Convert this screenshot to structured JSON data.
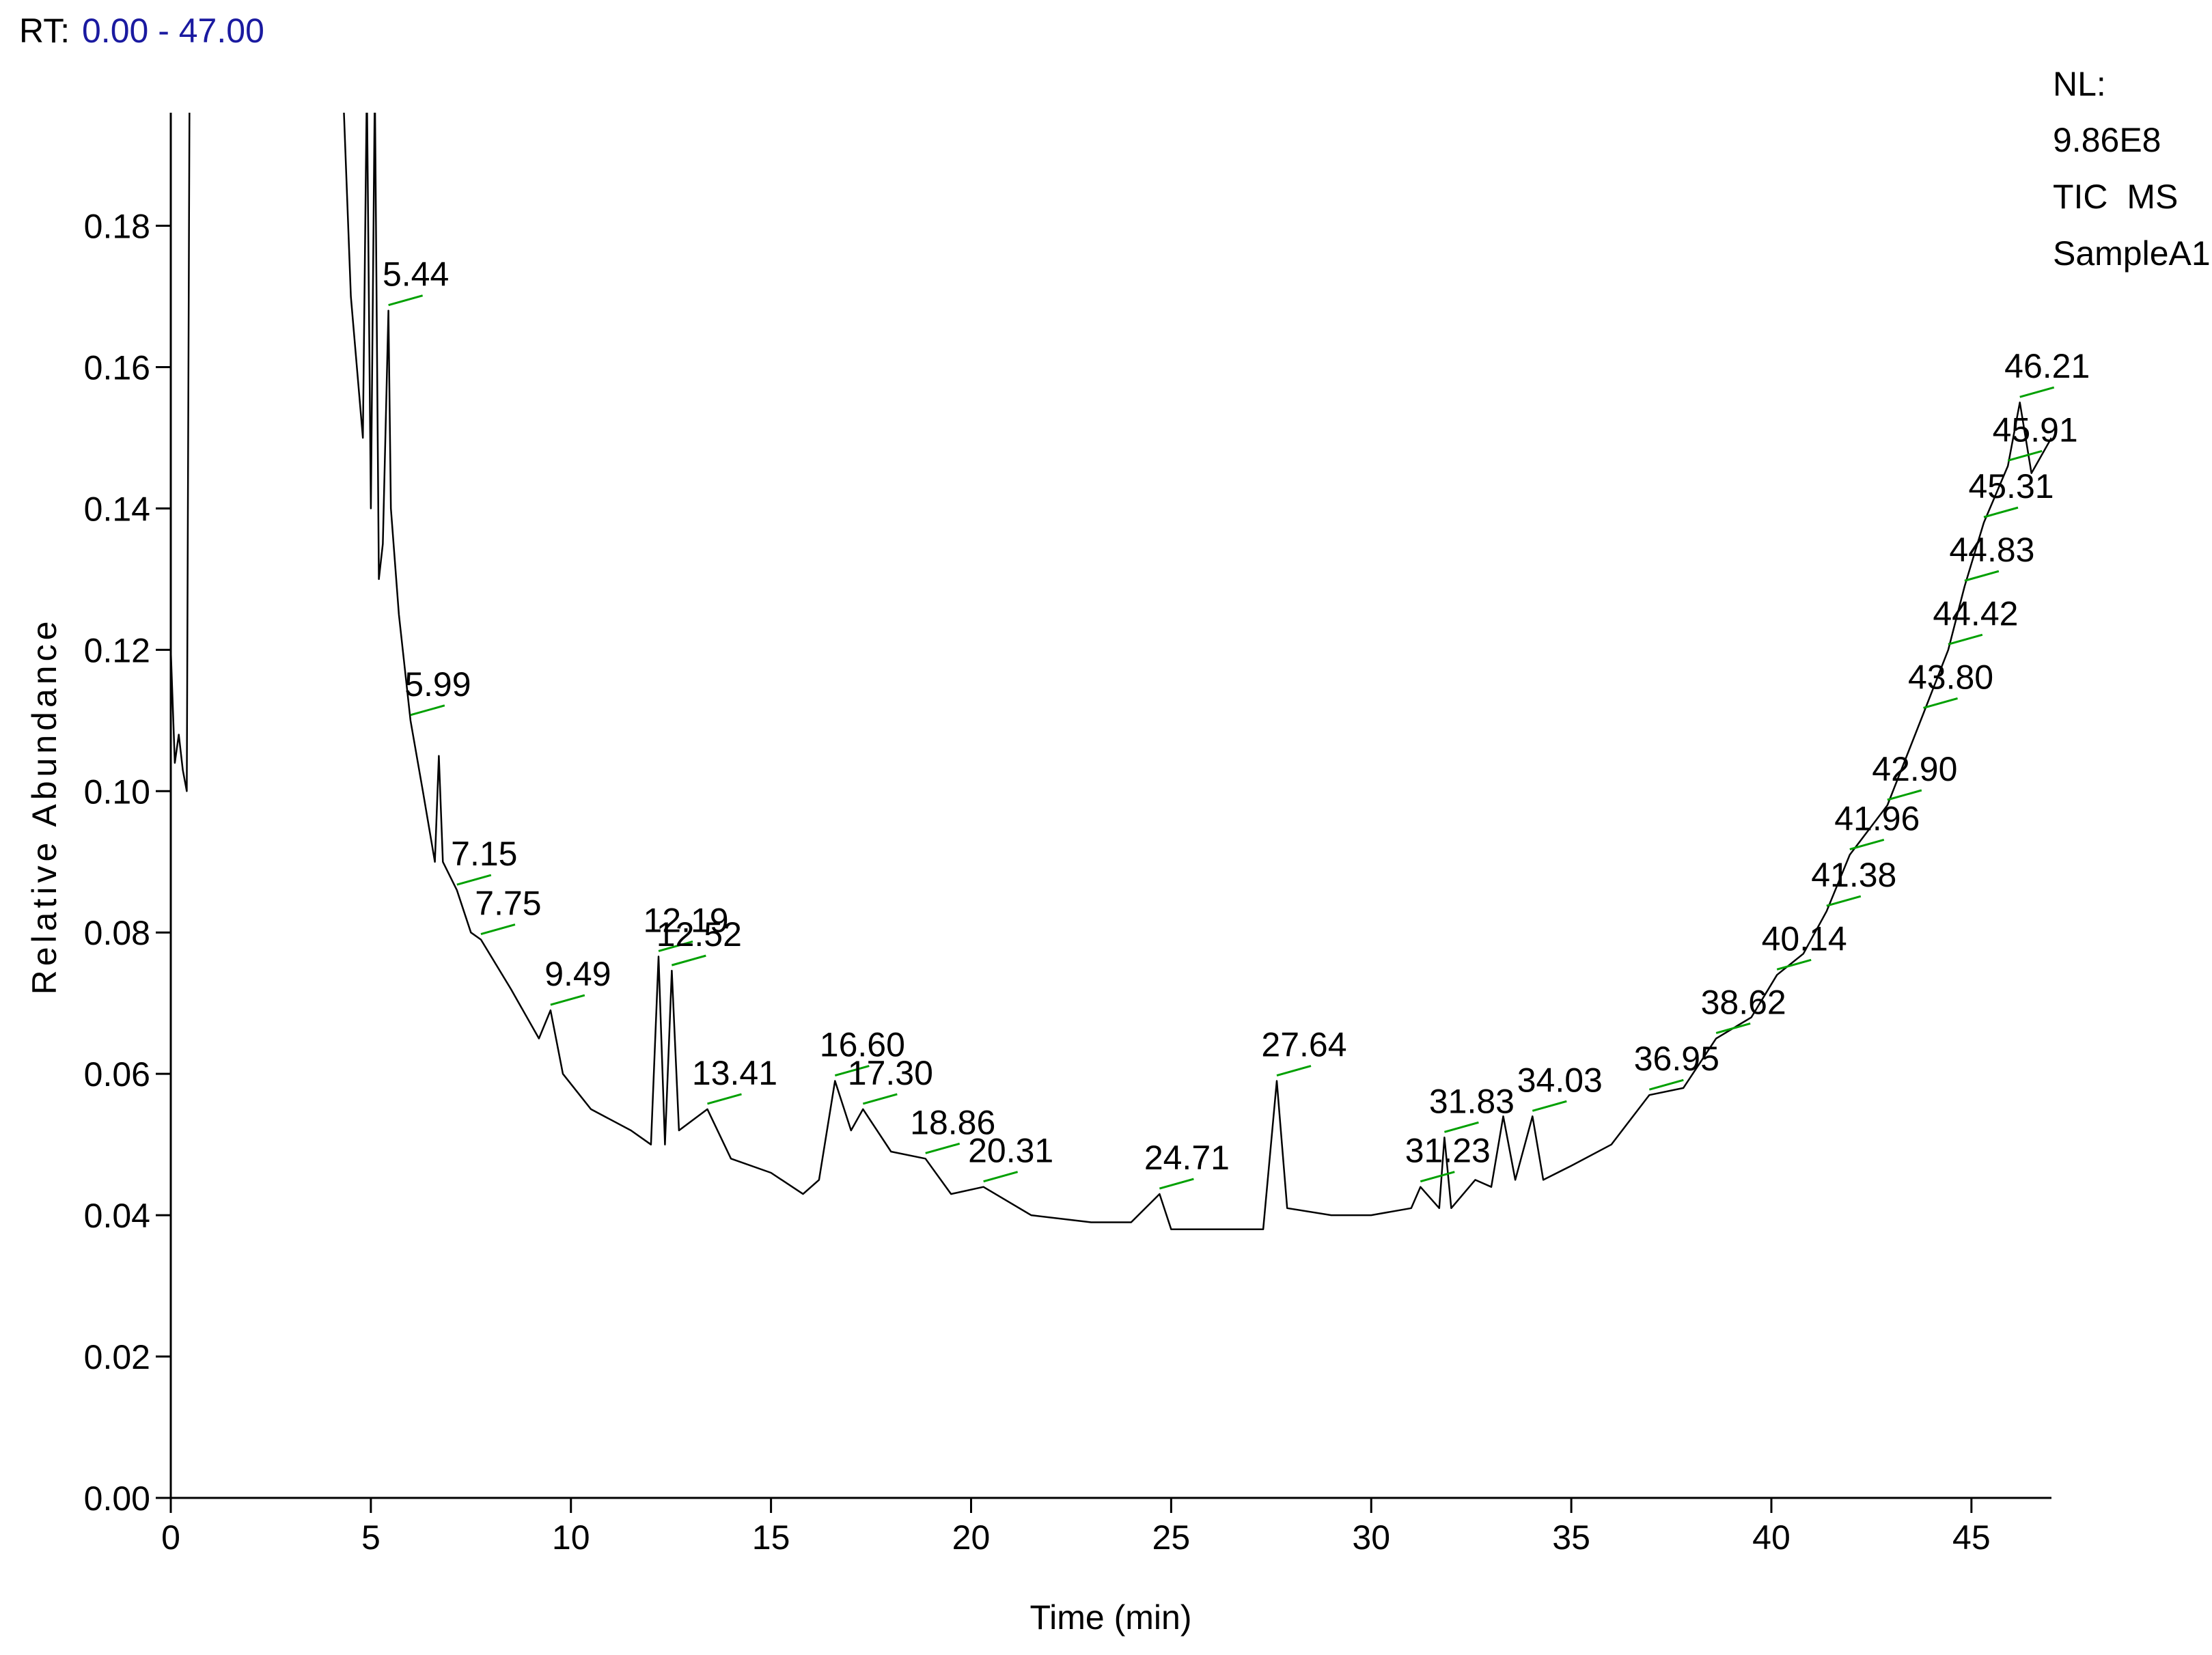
{
  "chart_data": {
    "type": "line",
    "rt_label": "RT:",
    "rt_range": "0.00 - 47.00",
    "info": [
      "NL:",
      "9.86E8",
      "TIC  MS",
      "SampleA1"
    ],
    "x_label": "Time (min)",
    "y_label": "Relative Abundance",
    "xlim": [
      0,
      47
    ],
    "ylim": [
      0,
      0.196
    ],
    "xticks": [
      0,
      5,
      10,
      15,
      20,
      25,
      30,
      35,
      40,
      45
    ],
    "yticks": [
      {
        "value": 0,
        "label": "0.00"
      },
      0.02,
      0.04,
      0.06,
      0.08,
      {
        "value": 0.1,
        "label": "0.10"
      },
      0.12,
      0.14,
      0.16,
      0.18
    ],
    "x": [
      0,
      0.1,
      0.2,
      0.3,
      0.4,
      0.47,
      2.5,
      4.3,
      4.5,
      4.8,
      4.9,
      5.0,
      5.1,
      5.2,
      5.3,
      5.44,
      5.5,
      5.7,
      5.99,
      6.3,
      6.6,
      6.7,
      6.8,
      7.15,
      7.5,
      7.75,
      8.5,
      9.2,
      9.49,
      9.8,
      10.5,
      11.5,
      12.0,
      12.19,
      12.35,
      12.52,
      12.7,
      13.41,
      14.0,
      15.0,
      15.8,
      16.2,
      16.6,
      17.0,
      17.3,
      18.0,
      18.86,
      19.5,
      20.31,
      21.5,
      23.0,
      24.0,
      24.71,
      25.0,
      26.0,
      27.3,
      27.64,
      27.9,
      29.0,
      30.0,
      31.0,
      31.23,
      31.7,
      31.83,
      32.0,
      32.6,
      33.0,
      33.3,
      33.6,
      34.03,
      34.3,
      35.0,
      36.0,
      36.95,
      37.8,
      38.62,
      39.5,
      40.14,
      40.8,
      41.38,
      41.96,
      42.9,
      43.8,
      44.42,
      44.83,
      45.31,
      45.91,
      46.21,
      46.5,
      47
    ],
    "series": [
      {
        "color": "#000000",
        "values": [
          0.12,
          0.104,
          0.108,
          0.103,
          0.1,
          0.2,
          null,
          0.2,
          0.17,
          0.15,
          0.2,
          0.14,
          0.2,
          0.13,
          0.135,
          0.168,
          0.14,
          0.125,
          0.11,
          0.1,
          0.09,
          0.105,
          0.09,
          0.086,
          0.08,
          0.079,
          0.072,
          0.065,
          0.069,
          0.06,
          0.055,
          0.052,
          0.05,
          0.0766,
          0.05,
          0.0746,
          0.052,
          0.055,
          0.048,
          0.046,
          0.043,
          0.045,
          0.059,
          0.052,
          0.055,
          0.049,
          0.048,
          0.043,
          0.044,
          0.04,
          0.039,
          0.039,
          0.043,
          0.038,
          0.038,
          0.038,
          0.059,
          0.041,
          0.04,
          0.04,
          0.041,
          0.044,
          0.041,
          0.051,
          0.041,
          0.045,
          0.044,
          0.054,
          0.045,
          0.054,
          0.045,
          0.047,
          0.05,
          0.057,
          0.058,
          0.065,
          0.068,
          0.074,
          0.077,
          0.083,
          0.091,
          0.098,
          0.111,
          0.12,
          0.129,
          0.138,
          0.146,
          0.155,
          0.145,
          0.15
        ]
      }
    ],
    "peak_color": "#00a000",
    "peaks": [
      {
        "x": 5.44,
        "y": 0.168,
        "label": "5.44"
      },
      {
        "x": 5.99,
        "y": 0.11,
        "label": "5.99"
      },
      {
        "x": 7.15,
        "y": 0.086,
        "label": "7.15"
      },
      {
        "x": 7.75,
        "y": 0.079,
        "label": "7.75"
      },
      {
        "x": 9.49,
        "y": 0.069,
        "label": "9.49"
      },
      {
        "x": 12.19,
        "y": 0.0766,
        "label": "12.19"
      },
      {
        "x": 12.52,
        "y": 0.0746,
        "label": "12.52"
      },
      {
        "x": 13.41,
        "y": 0.055,
        "label": "13.41"
      },
      {
        "x": 16.6,
        "y": 0.059,
        "label": "16.60"
      },
      {
        "x": 17.3,
        "y": 0.055,
        "label": "17.30"
      },
      {
        "x": 18.86,
        "y": 0.048,
        "label": "18.86"
      },
      {
        "x": 20.31,
        "y": 0.044,
        "label": "20.31"
      },
      {
        "x": 24.71,
        "y": 0.043,
        "label": "24.71"
      },
      {
        "x": 27.64,
        "y": 0.059,
        "label": "27.64"
      },
      {
        "x": 31.23,
        "y": 0.044,
        "label": "31.23"
      },
      {
        "x": 31.83,
        "y": 0.051,
        "label": "31.83"
      },
      {
        "x": 34.03,
        "y": 0.054,
        "label": "34.03"
      },
      {
        "x": 36.95,
        "y": 0.057,
        "label": "36.95"
      },
      {
        "x": 38.62,
        "y": 0.065,
        "label": "38.62"
      },
      {
        "x": 40.14,
        "y": 0.074,
        "label": "40.14"
      },
      {
        "x": 41.38,
        "y": 0.083,
        "label": "41.38"
      },
      {
        "x": 41.96,
        "y": 0.091,
        "label": "41.96"
      },
      {
        "x": 42.9,
        "y": 0.098,
        "label": "42.90"
      },
      {
        "x": 43.8,
        "y": 0.111,
        "label": "43.80"
      },
      {
        "x": 44.42,
        "y": 0.12,
        "label": "44.42"
      },
      {
        "x": 44.83,
        "y": 0.129,
        "label": "44.83"
      },
      {
        "x": 45.31,
        "y": 0.138,
        "label": "45.31"
      },
      {
        "x": 45.91,
        "y": 0.146,
        "label": "45.91"
      },
      {
        "x": 46.21,
        "y": 0.155,
        "label": "46.21"
      }
    ]
  }
}
